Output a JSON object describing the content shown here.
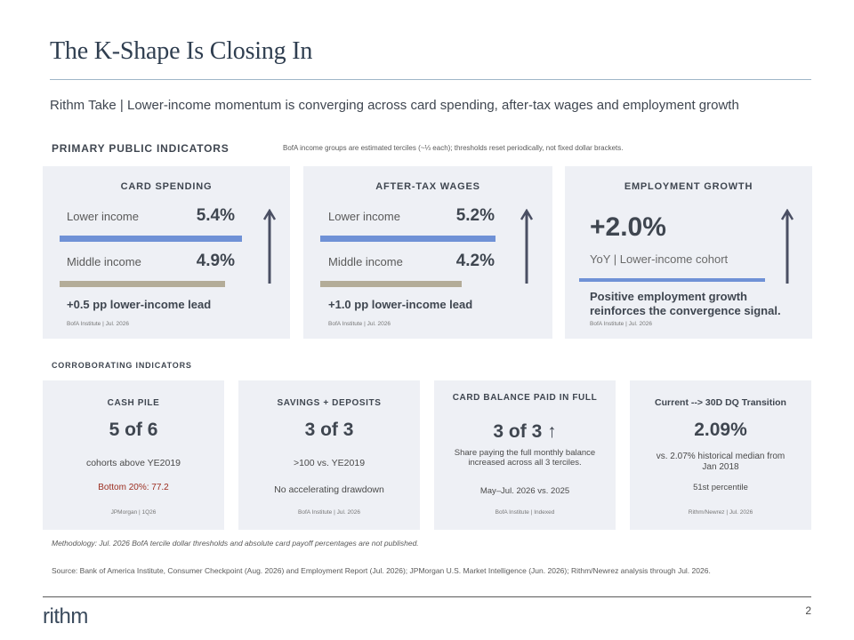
{
  "title": "The K-Shape Is Closing In",
  "take": "Rithm Take  |  Lower-income momentum is converging across card spending, after-tax wages and employment growth",
  "primary": {
    "label": "PRIMARY PUBLIC INDICATORS",
    "note": "BofA income groups are estimated terciles (~⅓ each); thresholds reset periodically, not fixed dollar brackets.",
    "card_spending": {
      "title": "CARD SPENDING",
      "lower_label": "Lower income",
      "lower_value": "5.4%",
      "lower_fraction": 0.054,
      "middle_label": "Middle income",
      "middle_value": "4.9%",
      "middle_fraction": 0.049,
      "lead": "+0.5 pp lower-income lead",
      "source": "BofA Institute  |  Jul. 2026"
    },
    "after_tax_wages": {
      "title": "AFTER-TAX WAGES",
      "lower_label": "Lower income",
      "lower_value": "5.2%",
      "lower_fraction": 0.052,
      "middle_label": "Middle income",
      "middle_value": "4.2%",
      "middle_fraction": 0.042,
      "lead": "+1.0 pp lower-income lead",
      "source": "BofA Institute  |  Jul. 2026"
    },
    "employment": {
      "title": "EMPLOYMENT GROWTH",
      "value": "+2.0%",
      "sub": "YoY  |  Lower-income cohort",
      "note": "Positive employment growth reinforces the convergence signal.",
      "source": "BofA Institute  |  Jul. 2026"
    }
  },
  "corroborating": {
    "label": "CORROBORATING INDICATORS",
    "cash_pile": {
      "title": "CASH PILE",
      "value": "5 of 6",
      "sub": "cohorts above YE2019",
      "highlight": "Bottom 20%: 77.2",
      "source": "JPMorgan  |  1Q26"
    },
    "savings": {
      "title": "SAVINGS + DEPOSITS",
      "value": "3 of 3",
      "sub": ">100 vs. YE2019",
      "sub2": "No accelerating drawdown",
      "source": "BofA Institute  |  Jul. 2026"
    },
    "card_balance": {
      "title": "CARD BALANCE PAID IN FULL",
      "value": "3 of 3 ↑",
      "sub": "Share paying the full monthly balance increased across all 3 terciles.",
      "sub2": "May–Jul. 2026 vs. 2025",
      "source": "BofA Institute  |  Indexed"
    },
    "dq_transition": {
      "title": "Current --> 30D DQ Transition",
      "value": "2.09%",
      "sub": "vs. 2.07% historical median from Jan 2018",
      "sub2": "51st percentile",
      "source": "Rithm/Newrez  |  Jul. 2026"
    }
  },
  "methodology": "Methodology: Jul. 2026 BofA tercile dollar thresholds and absolute card payoff percentages are not published.",
  "source": "Source: Bank of America Institute, Consumer Checkpoint (Aug. 2026) and Employment Report (Jul. 2026); JPMorgan U.S. Market Intelligence (Jun. 2026); Rithm/Newrez analysis through Jul. 2026.",
  "logo": "rithm",
  "page_number": "2",
  "colors": {
    "accent_blue": "#6f91d6",
    "muted_bar": "#b3ac98",
    "highlight_red": "#9b2d1f",
    "card_bg": "#eef0f5",
    "arrow": "#4a4f63"
  }
}
